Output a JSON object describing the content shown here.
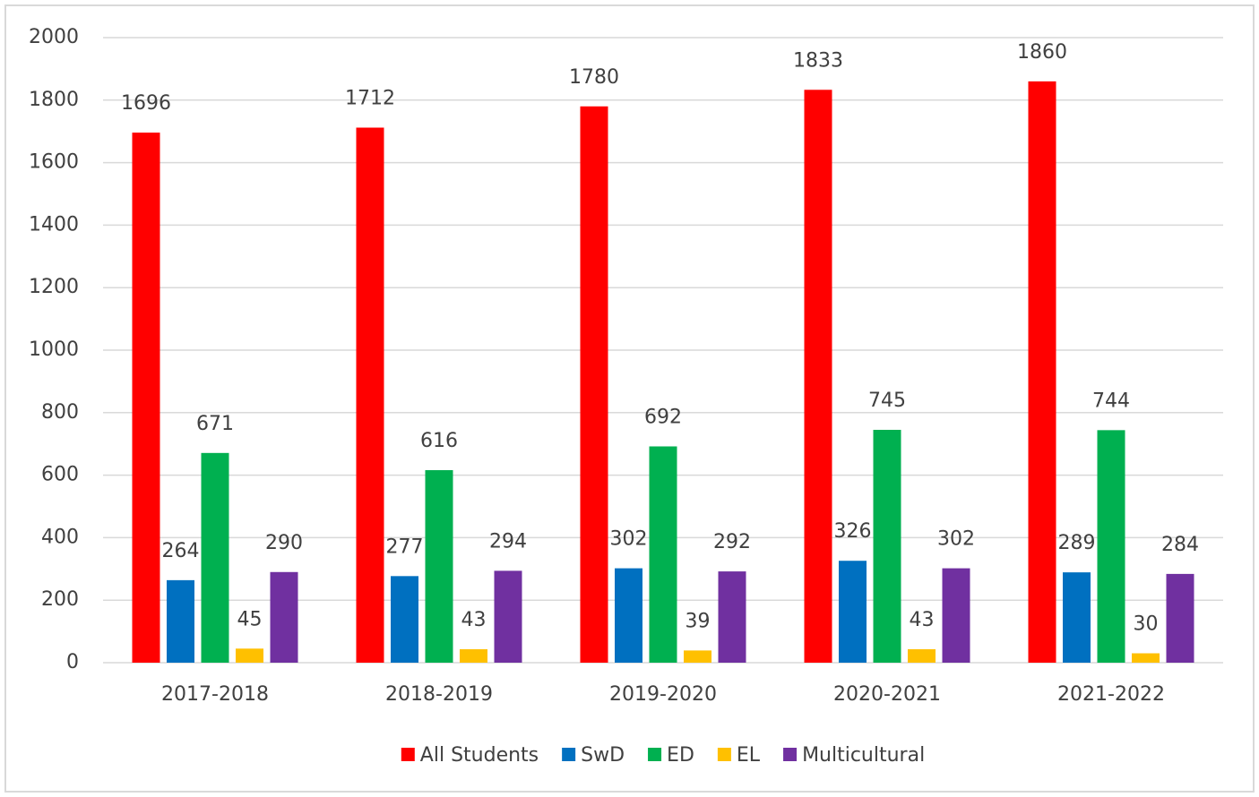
{
  "chart_data": {
    "type": "bar",
    "categories": [
      "2017-2018",
      "2018-2019",
      "2019-2020",
      "2020-2021",
      "2021-2022"
    ],
    "series": [
      {
        "name": "All Students",
        "color": "#ff0000",
        "values": [
          1696,
          1712,
          1780,
          1833,
          1860
        ]
      },
      {
        "name": "SwD",
        "color": "#0070c0",
        "values": [
          264,
          277,
          302,
          326,
          289
        ]
      },
      {
        "name": "ED",
        "color": "#00b050",
        "values": [
          671,
          616,
          692,
          745,
          744
        ]
      },
      {
        "name": "EL",
        "color": "#ffc000",
        "values": [
          45,
          43,
          39,
          43,
          30
        ]
      },
      {
        "name": "Multicultural",
        "color": "#7030a0",
        "values": [
          290,
          294,
          292,
          302,
          284
        ]
      }
    ],
    "ylim": [
      0,
      2000
    ],
    "yticks": [
      0,
      200,
      400,
      600,
      800,
      1000,
      1200,
      1400,
      1600,
      1800,
      2000
    ],
    "grid": true,
    "legend": "bottom"
  }
}
